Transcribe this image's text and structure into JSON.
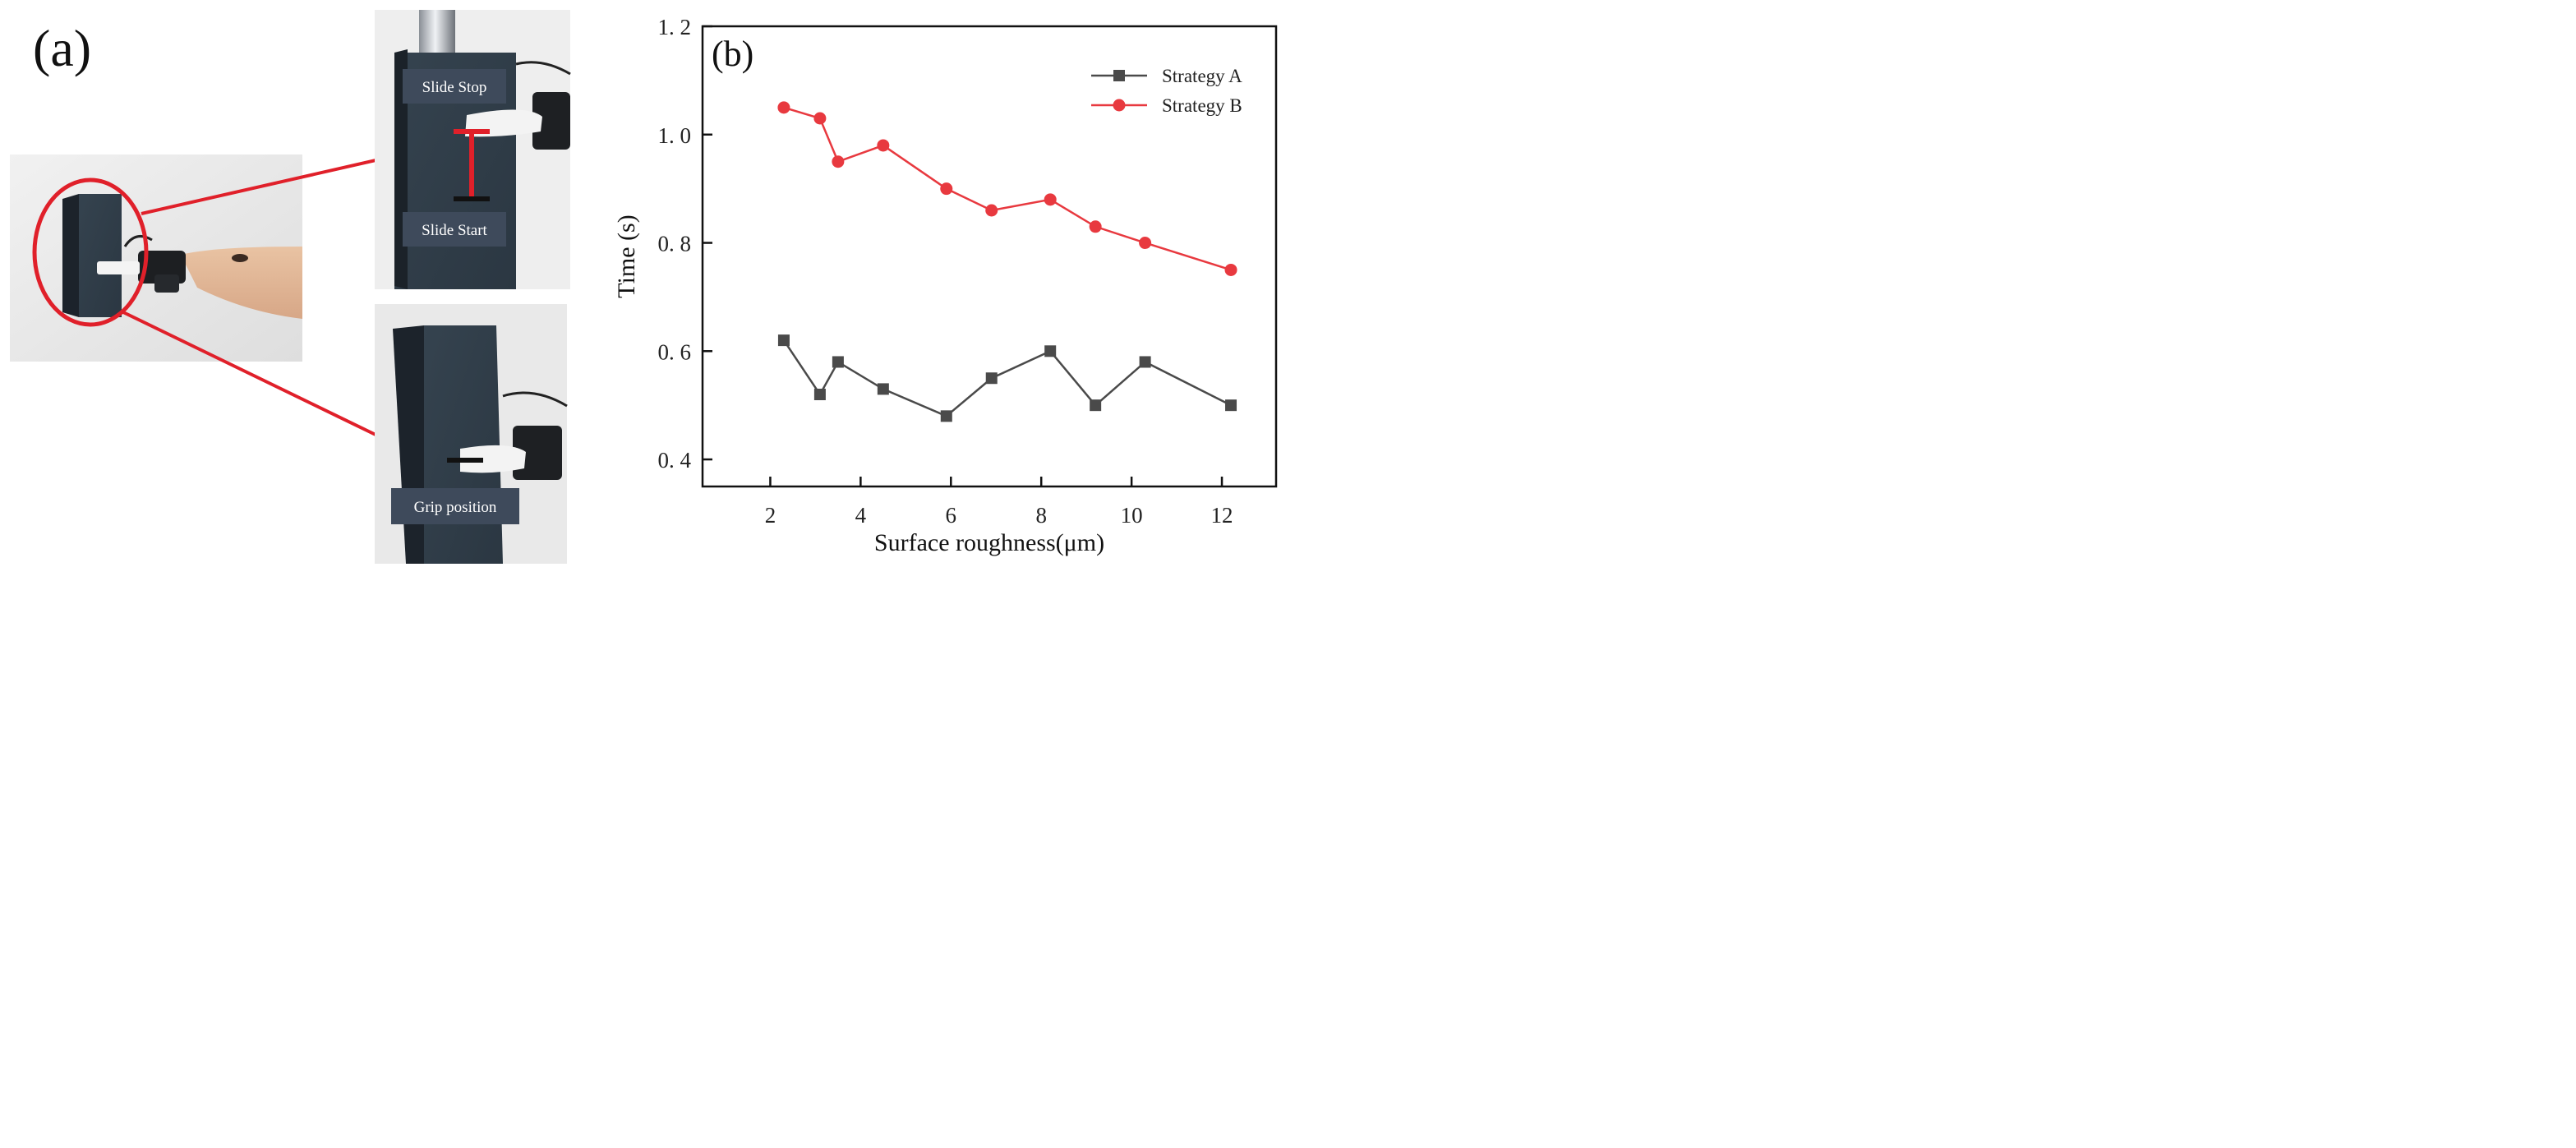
{
  "panel_a": {
    "label": "(a)",
    "labels": {
      "slide_stop": "Slide Stop",
      "slide_start": "Slide Start",
      "grip_position": "Grip position"
    },
    "colors": {
      "accent": "#e0202a",
      "label_box": "#3e4a5b",
      "block": "#2f3c4a"
    }
  },
  "panel_b": {
    "label": "(b)"
  },
  "chart_data": {
    "type": "line",
    "title": "",
    "xlabel": "Surface roughness(μm)",
    "ylabel": "Time (s)",
    "xlim": [
      0.5,
      13.2
    ],
    "ylim": [
      0.35,
      1.2
    ],
    "xticks": [
      2,
      4,
      6,
      8,
      10,
      12
    ],
    "yticks": [
      0.4,
      0.6,
      0.8,
      1.0,
      1.2
    ],
    "ytick_labels": [
      "0. 4",
      "0. 6",
      "0. 8",
      "1. 0",
      "1. 2"
    ],
    "grid": false,
    "legend_position": "top-right",
    "series": [
      {
        "name": "Strategy A",
        "marker": "square",
        "color": "#4a4a4a",
        "x": [
          2.3,
          3.1,
          3.5,
          4.5,
          5.9,
          6.9,
          8.2,
          9.2,
          10.3,
          12.2
        ],
        "y": [
          0.62,
          0.52,
          0.58,
          0.53,
          0.48,
          0.55,
          0.6,
          0.5,
          0.58,
          0.5
        ]
      },
      {
        "name": "Strategy B",
        "marker": "circle",
        "color": "#e8393f",
        "x": [
          2.3,
          3.1,
          3.5,
          4.5,
          5.9,
          6.9,
          8.2,
          9.2,
          10.3,
          12.2
        ],
        "y": [
          1.05,
          1.03,
          0.95,
          0.98,
          0.9,
          0.86,
          0.88,
          0.83,
          0.8,
          0.75
        ]
      }
    ]
  }
}
